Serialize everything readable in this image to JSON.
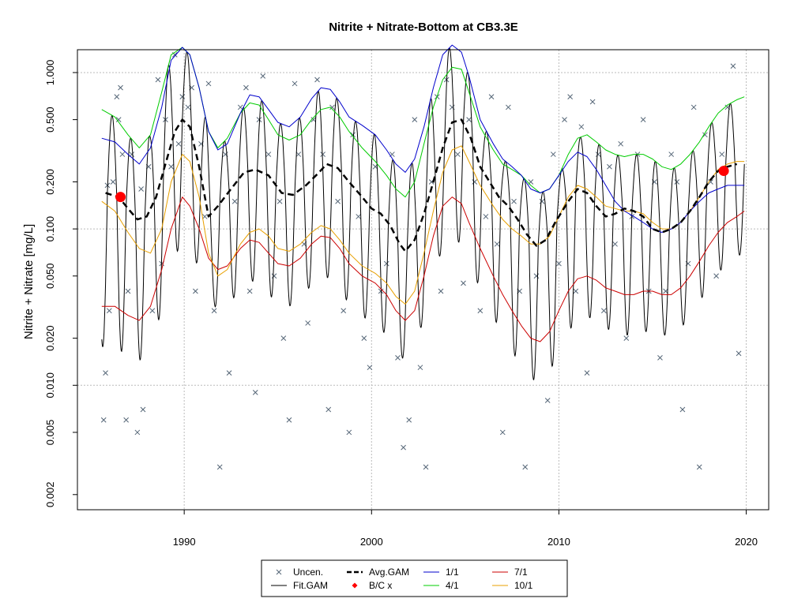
{
  "chart_data": {
    "type": "line",
    "title": "Nitrite + Nitrate-Bottom at CB3.3E",
    "ylabel": "Nitrite + Nitrate [mg/L]",
    "xlabel": "",
    "x_scale": "linear",
    "y_scale": "log",
    "xlim": [
      1984.3,
      2021.2
    ],
    "ylim": [
      0.0016,
      1.4
    ],
    "x_ticks": [
      1990,
      2000,
      2010,
      2020
    ],
    "x_tick_labels": [
      "1990",
      "2000",
      "2010",
      "2020"
    ],
    "y_ticks": [
      0.002,
      0.005,
      0.01,
      0.02,
      0.05,
      0.1,
      0.2,
      0.5,
      1.0
    ],
    "y_tick_labels": [
      "0.002",
      "0.005",
      "0.010",
      "0.020",
      "0.050",
      "0.100",
      "0.200",
      "0.500",
      "1.000"
    ],
    "grid_y": [
      0.01,
      0.1,
      1.0
    ],
    "grid_x": [
      1990,
      2000,
      2010,
      2020
    ],
    "legend": {
      "placement": "bottom-center",
      "entries": [
        {
          "label": "Uncen.",
          "kind": "point-x",
          "color": "#556677"
        },
        {
          "label": "Fit.GAM",
          "kind": "line",
          "color": "#000000"
        },
        {
          "label": "Avg.GAM",
          "kind": "dashed-line",
          "color": "#000000"
        },
        {
          "label": "B/C x",
          "kind": "point-dot",
          "color": "#ff0000"
        },
        {
          "label": "1/1",
          "kind": "line",
          "color": "#0000cc"
        },
        {
          "label": "4/1",
          "kind": "line",
          "color": "#00cc00"
        },
        {
          "label": "7/1",
          "kind": "line",
          "color": "#cc0000"
        },
        {
          "label": "10/1",
          "kind": "line",
          "color": "#e8a000"
        }
      ]
    },
    "series": [
      {
        "name": "Avg.GAM",
        "color": "#000000",
        "style": "dashed",
        "x": [
          1985.8,
          1986.5,
          1987.0,
          1987.5,
          1988.0,
          1988.5,
          1989.0,
          1989.5,
          1989.9,
          1990.3,
          1990.8,
          1991.3,
          1991.8,
          1992.5,
          1993.2,
          1993.8,
          1994.5,
          1995.2,
          1995.8,
          1996.5,
          1997.2,
          1997.6,
          1998.2,
          1998.8,
          1999.5,
          2000.0,
          2000.5,
          2001.0,
          2001.5,
          2001.8,
          2002.3,
          2002.8,
          2003.3,
          2003.8,
          2004.3,
          2004.8,
          2005.3,
          2005.8,
          2006.3,
          2006.8,
          2007.3,
          2007.8,
          2008.3,
          2008.8,
          2009.3,
          2009.8,
          2010.5,
          2011.0,
          2011.5,
          2012.0,
          2012.5,
          2013.0,
          2013.5,
          2014.0,
          2014.5,
          2015.0,
          2015.5,
          2016.0,
          2016.5,
          2017.0,
          2017.5,
          2018.0,
          2018.5,
          2019.0,
          2019.5
        ],
        "y": [
          0.17,
          0.16,
          0.135,
          0.115,
          0.12,
          0.16,
          0.26,
          0.42,
          0.5,
          0.45,
          0.25,
          0.12,
          0.14,
          0.18,
          0.23,
          0.24,
          0.22,
          0.17,
          0.165,
          0.19,
          0.23,
          0.26,
          0.245,
          0.2,
          0.16,
          0.135,
          0.125,
          0.105,
          0.08,
          0.072,
          0.085,
          0.125,
          0.2,
          0.33,
          0.48,
          0.5,
          0.38,
          0.25,
          0.2,
          0.16,
          0.14,
          0.115,
          0.092,
          0.078,
          0.085,
          0.11,
          0.15,
          0.18,
          0.17,
          0.14,
          0.12,
          0.125,
          0.135,
          0.13,
          0.12,
          0.1,
          0.095,
          0.1,
          0.11,
          0.13,
          0.16,
          0.2,
          0.235,
          0.25,
          0.26
        ]
      },
      {
        "name": "1/1",
        "color": "#0000cc",
        "style": "solid",
        "x": [
          1985.6,
          1986.3,
          1987.0,
          1987.6,
          1988.2,
          1988.8,
          1989.3,
          1989.9,
          1990.3,
          1990.8,
          1991.3,
          1991.8,
          1992.3,
          1993.0,
          1993.5,
          1994.0,
          1994.5,
          1995.0,
          1995.6,
          1996.2,
          1996.8,
          1997.3,
          1997.8,
          1998.3,
          1998.8,
          1999.5,
          2000.2,
          2000.8,
          2001.3,
          2001.8,
          2002.3,
          2002.8,
          2003.3,
          2003.8,
          2004.3,
          2004.8,
          2005.2,
          2005.8,
          2006.5,
          2007.0,
          2007.5,
          2008.0,
          2008.5,
          2009.0,
          2009.5,
          2010.0,
          2010.5,
          2011.0,
          2011.5,
          2012.0,
          2012.5,
          2013.0,
          2013.5,
          2014.0,
          2014.5,
          2015.0,
          2015.5,
          2016.0,
          2016.5,
          2017.0,
          2017.5,
          2018.0,
          2018.5,
          2019.0,
          2019.5,
          2019.9
        ],
        "y": [
          0.38,
          0.36,
          0.3,
          0.26,
          0.33,
          0.6,
          1.2,
          1.45,
          1.3,
          0.8,
          0.42,
          0.32,
          0.35,
          0.55,
          0.72,
          0.7,
          0.58,
          0.48,
          0.45,
          0.52,
          0.68,
          0.8,
          0.78,
          0.65,
          0.52,
          0.46,
          0.4,
          0.32,
          0.26,
          0.23,
          0.28,
          0.45,
          0.8,
          1.3,
          1.5,
          1.35,
          0.95,
          0.5,
          0.35,
          0.28,
          0.25,
          0.22,
          0.18,
          0.17,
          0.18,
          0.22,
          0.27,
          0.31,
          0.29,
          0.24,
          0.19,
          0.15,
          0.13,
          0.12,
          0.11,
          0.1,
          0.095,
          0.1,
          0.11,
          0.13,
          0.15,
          0.17,
          0.18,
          0.19,
          0.19,
          0.19
        ]
      },
      {
        "name": "4/1",
        "color": "#00cc00",
        "style": "solid",
        "x": [
          1985.6,
          1986.3,
          1987.0,
          1987.6,
          1988.2,
          1988.8,
          1989.3,
          1989.9,
          1990.3,
          1990.8,
          1991.3,
          1991.8,
          1992.3,
          1993.0,
          1993.5,
          1994.0,
          1994.5,
          1995.0,
          1995.6,
          1996.2,
          1996.8,
          1997.3,
          1997.8,
          1998.3,
          1998.8,
          1999.5,
          2000.2,
          2000.8,
          2001.3,
          2001.8,
          2002.3,
          2002.8,
          2003.3,
          2003.8,
          2004.3,
          2004.8,
          2005.2,
          2005.8,
          2006.5,
          2007.0,
          2007.5,
          2008.0,
          2008.5,
          2009.0,
          2009.5,
          2010.0,
          2010.5,
          2011.0,
          2011.5,
          2012.0,
          2012.5,
          2013.0,
          2013.5,
          2014.0,
          2014.5,
          2015.0,
          2015.5,
          2016.0,
          2016.5,
          2017.0,
          2017.5,
          2018.0,
          2018.5,
          2019.0,
          2019.5,
          2019.9
        ],
        "y": [
          0.58,
          0.52,
          0.4,
          0.33,
          0.4,
          0.75,
          1.3,
          1.45,
          1.3,
          0.8,
          0.42,
          0.33,
          0.38,
          0.55,
          0.64,
          0.62,
          0.5,
          0.4,
          0.37,
          0.4,
          0.5,
          0.58,
          0.6,
          0.52,
          0.42,
          0.33,
          0.27,
          0.22,
          0.18,
          0.16,
          0.2,
          0.35,
          0.6,
          0.9,
          1.08,
          1.05,
          0.75,
          0.45,
          0.32,
          0.26,
          0.24,
          0.22,
          0.19,
          0.17,
          0.18,
          0.22,
          0.3,
          0.38,
          0.4,
          0.36,
          0.32,
          0.3,
          0.29,
          0.3,
          0.3,
          0.28,
          0.25,
          0.24,
          0.26,
          0.3,
          0.36,
          0.45,
          0.55,
          0.62,
          0.67,
          0.7
        ]
      },
      {
        "name": "7/1",
        "color": "#cc0000",
        "style": "solid",
        "x": [
          1985.6,
          1986.3,
          1987.0,
          1987.6,
          1988.2,
          1988.8,
          1989.3,
          1989.9,
          1990.3,
          1990.8,
          1991.3,
          1991.8,
          1992.3,
          1993.0,
          1993.5,
          1994.0,
          1994.5,
          1995.0,
          1995.6,
          1996.2,
          1996.8,
          1997.3,
          1997.8,
          1998.3,
          1998.8,
          1999.5,
          2000.2,
          2000.8,
          2001.3,
          2001.8,
          2002.3,
          2002.8,
          2003.3,
          2003.8,
          2004.3,
          2004.8,
          2005.2,
          2005.8,
          2006.5,
          2007.0,
          2007.5,
          2008.0,
          2008.5,
          2009.0,
          2009.5,
          2010.0,
          2010.5,
          2011.0,
          2011.5,
          2012.0,
          2012.5,
          2013.0,
          2013.5,
          2014.0,
          2014.5,
          2015.0,
          2015.5,
          2016.0,
          2016.5,
          2017.0,
          2017.5,
          2018.0,
          2018.5,
          2019.0,
          2019.5,
          2019.9
        ],
        "y": [
          0.032,
          0.032,
          0.028,
          0.026,
          0.032,
          0.055,
          0.1,
          0.16,
          0.14,
          0.1,
          0.065,
          0.055,
          0.058,
          0.075,
          0.085,
          0.082,
          0.07,
          0.06,
          0.058,
          0.065,
          0.08,
          0.09,
          0.088,
          0.075,
          0.06,
          0.05,
          0.045,
          0.038,
          0.03,
          0.026,
          0.03,
          0.05,
          0.09,
          0.14,
          0.16,
          0.145,
          0.11,
          0.075,
          0.05,
          0.038,
          0.03,
          0.024,
          0.02,
          0.019,
          0.022,
          0.03,
          0.04,
          0.048,
          0.05,
          0.047,
          0.042,
          0.04,
          0.038,
          0.038,
          0.04,
          0.04,
          0.038,
          0.038,
          0.042,
          0.05,
          0.062,
          0.078,
          0.095,
          0.11,
          0.12,
          0.13
        ]
      },
      {
        "name": "10/1",
        "color": "#e8a000",
        "style": "solid",
        "x": [
          1985.6,
          1986.3,
          1987.0,
          1987.6,
          1988.2,
          1988.8,
          1989.3,
          1989.9,
          1990.3,
          1990.8,
          1991.3,
          1991.8,
          1992.3,
          1993.0,
          1993.5,
          1994.0,
          1994.5,
          1995.0,
          1995.6,
          1996.2,
          1996.8,
          1997.3,
          1997.8,
          1998.3,
          1998.8,
          1999.5,
          2000.2,
          2000.8,
          2001.3,
          2001.8,
          2002.3,
          2002.8,
          2003.3,
          2003.8,
          2004.3,
          2004.8,
          2005.2,
          2005.8,
          2006.5,
          2007.0,
          2007.5,
          2008.0,
          2008.5,
          2009.0,
          2009.5,
          2010.0,
          2010.5,
          2011.0,
          2011.5,
          2012.0,
          2012.5,
          2013.0,
          2013.5,
          2014.0,
          2014.5,
          2015.0,
          2015.5,
          2016.0,
          2016.5,
          2017.0,
          2017.5,
          2018.0,
          2018.5,
          2019.0,
          2019.5,
          2019.9
        ],
        "y": [
          0.15,
          0.13,
          0.095,
          0.075,
          0.07,
          0.1,
          0.2,
          0.3,
          0.27,
          0.16,
          0.07,
          0.05,
          0.055,
          0.08,
          0.095,
          0.1,
          0.09,
          0.075,
          0.072,
          0.08,
          0.095,
          0.105,
          0.1,
          0.085,
          0.07,
          0.058,
          0.052,
          0.045,
          0.037,
          0.033,
          0.04,
          0.07,
          0.13,
          0.23,
          0.32,
          0.34,
          0.27,
          0.19,
          0.14,
          0.115,
          0.1,
          0.09,
          0.08,
          0.08,
          0.09,
          0.12,
          0.16,
          0.19,
          0.18,
          0.16,
          0.14,
          0.135,
          0.13,
          0.13,
          0.125,
          0.11,
          0.1,
          0.1,
          0.11,
          0.13,
          0.16,
          0.2,
          0.24,
          0.26,
          0.27,
          0.27
        ]
      }
    ],
    "fit_gam": {
      "name": "Fit.GAM",
      "color": "#000000",
      "description_points": "seasonal oscillation with peaks near Jan-Apr and troughs near Jul-Sep each year",
      "x_start": 1985.6,
      "x_end": 2019.9
    },
    "bc_points": [
      {
        "x": 1986.6,
        "y": 0.16
      },
      {
        "x": 2018.8,
        "y": 0.235
      }
    ],
    "uncensored_points": {
      "x": [
        1985.7,
        1985.8,
        1985.9,
        1986.0,
        1986.2,
        1986.4,
        1986.5,
        1986.6,
        1986.7,
        1986.9,
        1987.0,
        1987.2,
        1987.5,
        1987.7,
        1987.8,
        1988.1,
        1988.3,
        1988.6,
        1988.8,
        1989.0,
        1989.3,
        1989.5,
        1989.7,
        1989.9,
        1990.2,
        1990.4,
        1990.6,
        1990.9,
        1991.1,
        1991.3,
        1991.6,
        1991.9,
        1992.2,
        1992.4,
        1992.7,
        1993.0,
        1993.3,
        1993.5,
        1993.8,
        1994.0,
        1994.2,
        1994.5,
        1994.8,
        1995.1,
        1995.3,
        1995.6,
        1995.9,
        1996.1,
        1996.4,
        1996.6,
        1996.9,
        1997.1,
        1997.4,
        1997.7,
        1997.9,
        1998.2,
        1998.5,
        1998.8,
        1999.0,
        1999.3,
        1999.6,
        1999.9,
        2000.2,
        2000.5,
        2000.8,
        2001.1,
        2001.4,
        2001.7,
        2002.0,
        2002.3,
        2002.6,
        2002.9,
        2003.2,
        2003.5,
        2003.7,
        2004.0,
        2004.3,
        2004.6,
        2004.9,
        2005.2,
        2005.5,
        2005.8,
        2006.1,
        2006.4,
        2006.7,
        2007.0,
        2007.3,
        2007.6,
        2007.9,
        2008.2,
        2008.5,
        2008.8,
        2009.1,
        2009.4,
        2009.7,
        2010.0,
        2010.3,
        2010.6,
        2010.9,
        2011.2,
        2011.5,
        2011.8,
        2012.1,
        2012.4,
        2012.7,
        2013.0,
        2013.3,
        2013.6,
        2013.9,
        2014.2,
        2014.5,
        2014.8,
        2015.1,
        2015.4,
        2015.7,
        2016.0,
        2016.3,
        2016.6,
        2016.9,
        2017.2,
        2017.5,
        2017.8,
        2018.1,
        2018.4,
        2018.7,
        2019.0,
        2019.3,
        2019.6
      ],
      "y": [
        0.006,
        0.012,
        0.19,
        0.03,
        0.2,
        0.7,
        0.5,
        0.8,
        0.3,
        0.006,
        0.04,
        0.3,
        0.005,
        0.18,
        0.007,
        0.25,
        0.03,
        0.9,
        0.06,
        0.5,
        0.25,
        1.3,
        0.35,
        0.7,
        0.6,
        0.8,
        0.04,
        0.35,
        0.12,
        0.85,
        0.03,
        0.003,
        0.3,
        0.012,
        0.15,
        0.6,
        0.8,
        0.04,
        0.009,
        0.5,
        0.95,
        0.3,
        0.05,
        0.15,
        0.02,
        0.006,
        0.85,
        0.3,
        0.08,
        0.025,
        0.5,
        0.9,
        0.3,
        0.007,
        0.6,
        0.15,
        0.03,
        0.005,
        0.4,
        0.12,
        0.02,
        0.013,
        0.25,
        0.04,
        0.06,
        0.3,
        0.015,
        0.004,
        0.006,
        0.5,
        0.013,
        0.003,
        0.2,
        0.7,
        0.04,
        0.9,
        0.6,
        0.3,
        0.045,
        0.5,
        0.2,
        0.03,
        0.12,
        0.7,
        0.08,
        0.005,
        0.6,
        0.15,
        0.04,
        0.003,
        0.2,
        0.05,
        0.15,
        0.008,
        0.3,
        0.06,
        0.5,
        0.7,
        0.04,
        0.45,
        0.012,
        0.65,
        0.3,
        0.03,
        0.25,
        0.08,
        0.35,
        0.02,
        0.12,
        0.3,
        0.5,
        0.04,
        0.2,
        0.015,
        0.04,
        0.3,
        0.2,
        0.007,
        0.06,
        0.6,
        0.003,
        0.4,
        0.2,
        0.05,
        0.3,
        0.6,
        1.1,
        0.016
      ]
    }
  }
}
